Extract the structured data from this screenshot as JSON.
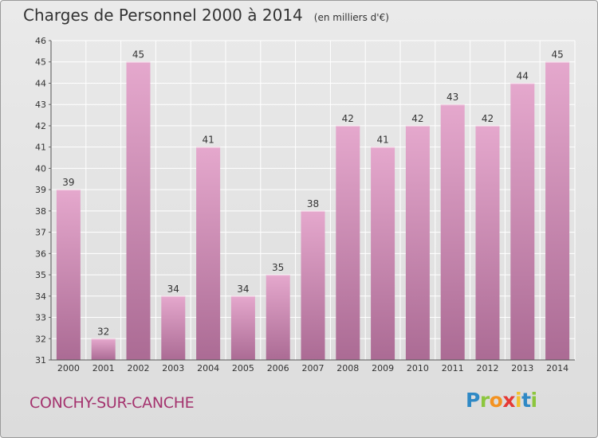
{
  "header": {
    "title": "Charges de Personnel 2000 à 2014",
    "unit": "(en milliers d'€)"
  },
  "commune": "CONCHY-SUR-CANCHE",
  "brand": {
    "letters": [
      "P",
      "r",
      "o",
      "x",
      "i",
      "t",
      "i"
    ],
    "colors": [
      "#2f89c5",
      "#8cc63e",
      "#f39221",
      "#e53935",
      "#f2c12e",
      "#2f89c5",
      "#8cc63e"
    ]
  },
  "colors": {
    "bar_top": "#e5a8cd",
    "bar_bottom": "#ab6b94",
    "grid": "#ffffff",
    "text": "#333333",
    "commune": "#a4336e"
  },
  "chart_data": {
    "type": "bar",
    "categories": [
      "2000",
      "2001",
      "2002",
      "2003",
      "2004",
      "2005",
      "2006",
      "2007",
      "2008",
      "2009",
      "2010",
      "2011",
      "2012",
      "2013",
      "2014"
    ],
    "values": [
      39,
      32,
      45,
      34,
      41,
      34,
      35,
      38,
      42,
      41,
      42,
      43,
      42,
      44,
      45
    ],
    "ylim": [
      31,
      46
    ],
    "yticks": [
      31,
      32,
      33,
      34,
      35,
      36,
      37,
      38,
      39,
      40,
      41,
      42,
      43,
      44,
      45,
      46
    ],
    "grid": true,
    "data_labels": true
  }
}
